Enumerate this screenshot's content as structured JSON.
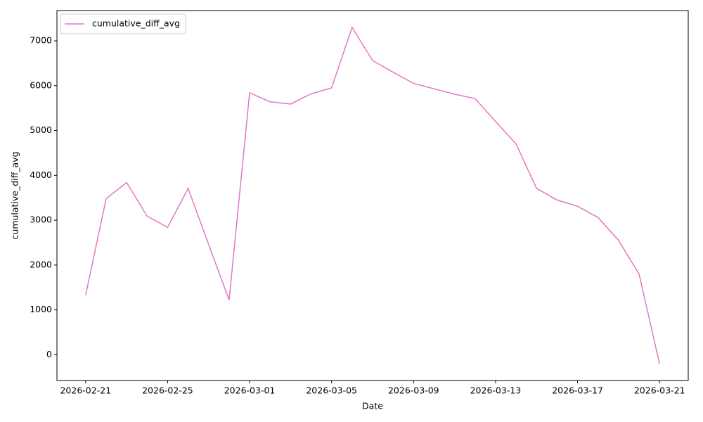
{
  "chart_data": {
    "type": "line",
    "xlabel": "Date",
    "ylabel": "cumulative_diff_avg",
    "x": [
      "2026-02-21",
      "2026-02-22",
      "2026-02-23",
      "2026-02-24",
      "2026-02-25",
      "2026-02-26",
      "2026-02-27",
      "2026-02-28",
      "2026-03-01",
      "2026-03-02",
      "2026-03-03",
      "2026-03-04",
      "2026-03-05",
      "2026-03-06",
      "2026-03-07",
      "2026-03-08",
      "2026-03-09",
      "2026-03-10",
      "2026-03-11",
      "2026-03-12",
      "2026-03-13",
      "2026-03-14",
      "2026-03-15",
      "2026-03-16",
      "2026-03-17",
      "2026-03-18",
      "2026-03-19",
      "2026-03-20",
      "2026-03-21"
    ],
    "series": [
      {
        "name": "cumulative_diff_avg",
        "color": "#e377c2",
        "values": [
          1330,
          3480,
          3840,
          3090,
          2840,
          3710,
          2460,
          1220,
          5840,
          5640,
          5590,
          5820,
          5950,
          7300,
          6560,
          6300,
          6050,
          5930,
          5810,
          5710,
          5200,
          4700,
          3710,
          3450,
          3310,
          3060,
          2550,
          1800,
          -200
        ]
      }
    ],
    "xlim": [
      "2026-02-19T14:24",
      "2026-03-22T09:36"
    ],
    "xticks": [
      "2026-02-21",
      "2026-02-25",
      "2026-03-01",
      "2026-03-05",
      "2026-03-09",
      "2026-03-13",
      "2026-03-17",
      "2026-03-21"
    ],
    "ylim": [
      -575,
      7675
    ],
    "yticks": [
      0,
      1000,
      2000,
      3000,
      4000,
      5000,
      6000,
      7000
    ],
    "legend": "upper left",
    "grid": false
  }
}
